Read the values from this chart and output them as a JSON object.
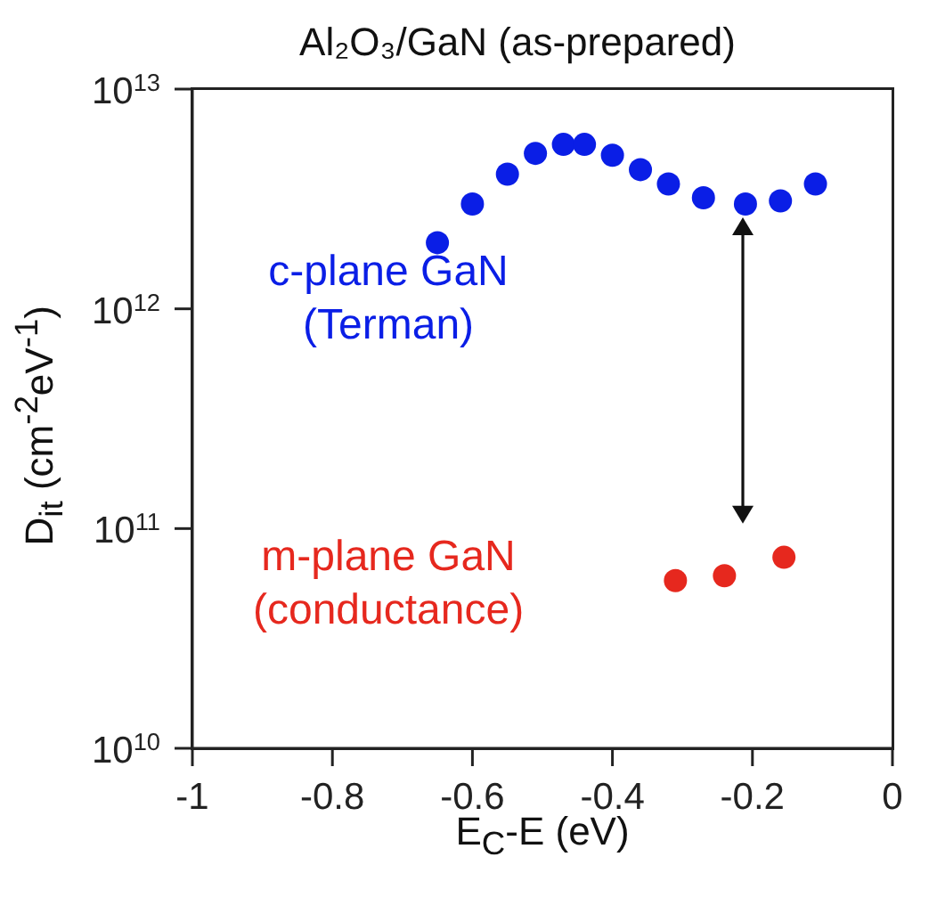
{
  "chart_data": {
    "type": "scatter",
    "title": "Al₂O₃/GaN (as-prepared)",
    "xlabel": "E$_{C}$-E (eV)",
    "ylabel": "D$_{it}$ (cm$^{-2}$eV$^{-1}$)",
    "log": "y",
    "marker": "circle",
    "grid": false,
    "legend": false,
    "xlim": [
      -1,
      0
    ],
    "xticks": [
      -1,
      -0.8,
      -0.6,
      -0.4,
      -0.2,
      0
    ],
    "ylim": [
      10000000000.0,
      10000000000000.0
    ],
    "yticks": [
      {
        "value": 10000000000.0,
        "label": "10$^{10}$"
      },
      {
        "value": 100000000000.0,
        "label": "10$^{11}$"
      },
      {
        "value": 1000000000000.0,
        "label": "10$^{12}$"
      },
      {
        "value": 10000000000000.0,
        "label": "10$^{13}$"
      }
    ],
    "series": [
      {
        "name": "c-plane GaN (Terman)",
        "color": "#0a1ee6",
        "x": [
          -0.65,
          -0.6,
          -0.55,
          -0.51,
          -0.47,
          -0.44,
          -0.4,
          -0.36,
          -0.32,
          -0.27,
          -0.21,
          -0.16,
          -0.11
        ],
        "values": [
          2000000000000.0,
          3000000000000.0,
          4100000000000.0,
          5100000000000.0,
          5600000000000.0,
          5600000000000.0,
          5000000000000.0,
          4300000000000.0,
          3700000000000.0,
          3200000000000.0,
          3000000000000.0,
          3100000000000.0,
          3700000000000.0
        ]
      },
      {
        "name": "m-plane GaN (conductance)",
        "color": "#e6281e",
        "x": [
          -0.31,
          -0.24,
          -0.155
        ],
        "values": [
          58000000000.0,
          61000000000.0,
          74000000000.0
        ]
      }
    ]
  }
}
